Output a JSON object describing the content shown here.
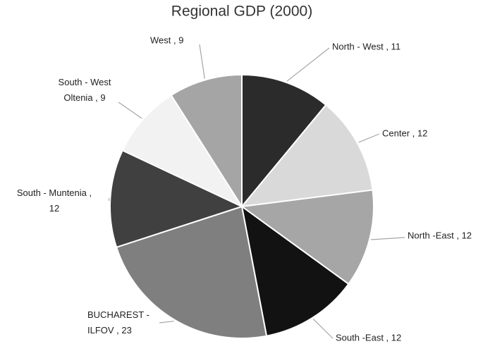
{
  "chart_data": {
    "type": "pie",
    "title": "Regional GDP (2000)",
    "values": [
      11,
      12,
      12,
      12,
      23,
      12,
      9,
      9
    ],
    "value_labels": [
      "North - West , 11",
      "Center , 12",
      "North -East , 12",
      "South -East , 12",
      "BUCHAREST -\nILFOV , 23",
      "South - Muntenia ,\n12",
      "South - West\nOltenia , 9",
      "West , 9"
    ],
    "colors": [
      "#2b2b2b",
      "#d9d9d9",
      "#a6a6a6",
      "#121212",
      "#7f7f7f",
      "#404040",
      "#f2f2f2",
      "#a5a5a5"
    ]
  }
}
